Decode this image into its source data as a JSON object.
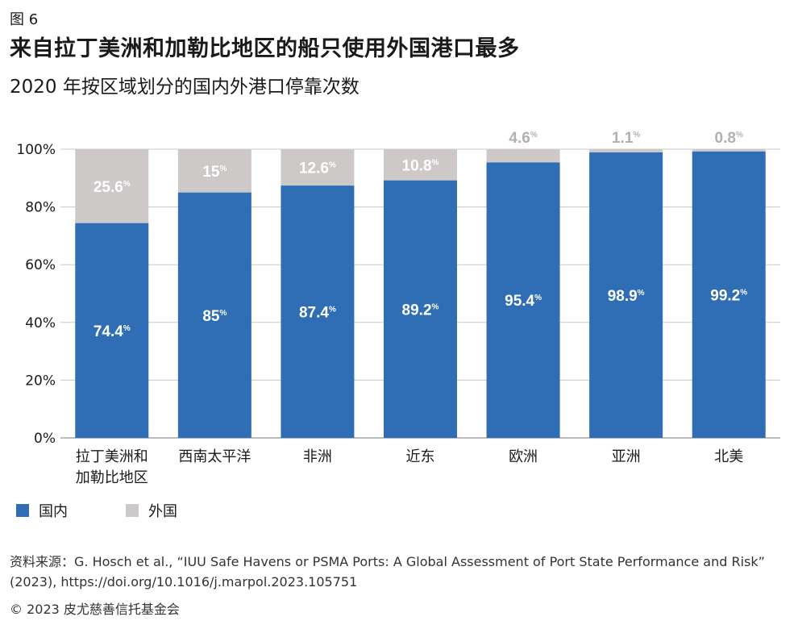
{
  "figure_label": "图 6",
  "title": "来自拉丁美洲和加勒比地区的船只使用外国港口最多",
  "subtitle": "2020 年按区域划分的国内外港口停靠次数",
  "legend": [
    {
      "label": "国内",
      "color": "#2f6db5"
    },
    {
      "label": "外国",
      "color": "#cdc9c8"
    }
  ],
  "source": "资料来源：G. Hosch et al., “IUU Safe Havens or PSMA Ports: A Global Assessment of Port State Performance and Risk” (2023), https://doi.org/10.1016/j.marpol.2023.105751",
  "copyright": "© 2023 皮尤慈善信托基金会",
  "chart_data": {
    "type": "bar",
    "stacked": true,
    "categories": [
      [
        "拉丁美洲和",
        "加勒比地区"
      ],
      [
        "西南太平洋"
      ],
      [
        "非洲"
      ],
      [
        "近东"
      ],
      [
        "欧洲"
      ],
      [
        "亚洲"
      ],
      [
        "北美"
      ]
    ],
    "series": [
      {
        "name": "国内",
        "color": "#2f6db5",
        "label_color": "#ffffff",
        "values": [
          74.4,
          85,
          87.4,
          89.2,
          95.4,
          98.9,
          99.2
        ]
      },
      {
        "name": "外国",
        "color": "#cdc9c8",
        "label_color": "#ffffff",
        "label_outside_color": "#b3b0ae",
        "values": [
          25.6,
          15,
          12.6,
          10.8,
          4.6,
          1.1,
          0.8
        ]
      }
    ],
    "y_ticks": [
      "0%",
      "20%",
      "40%",
      "60%",
      "80%",
      "100%"
    ],
    "ylim": [
      0,
      100
    ],
    "grid": true,
    "legend_position": "bottom-left"
  }
}
